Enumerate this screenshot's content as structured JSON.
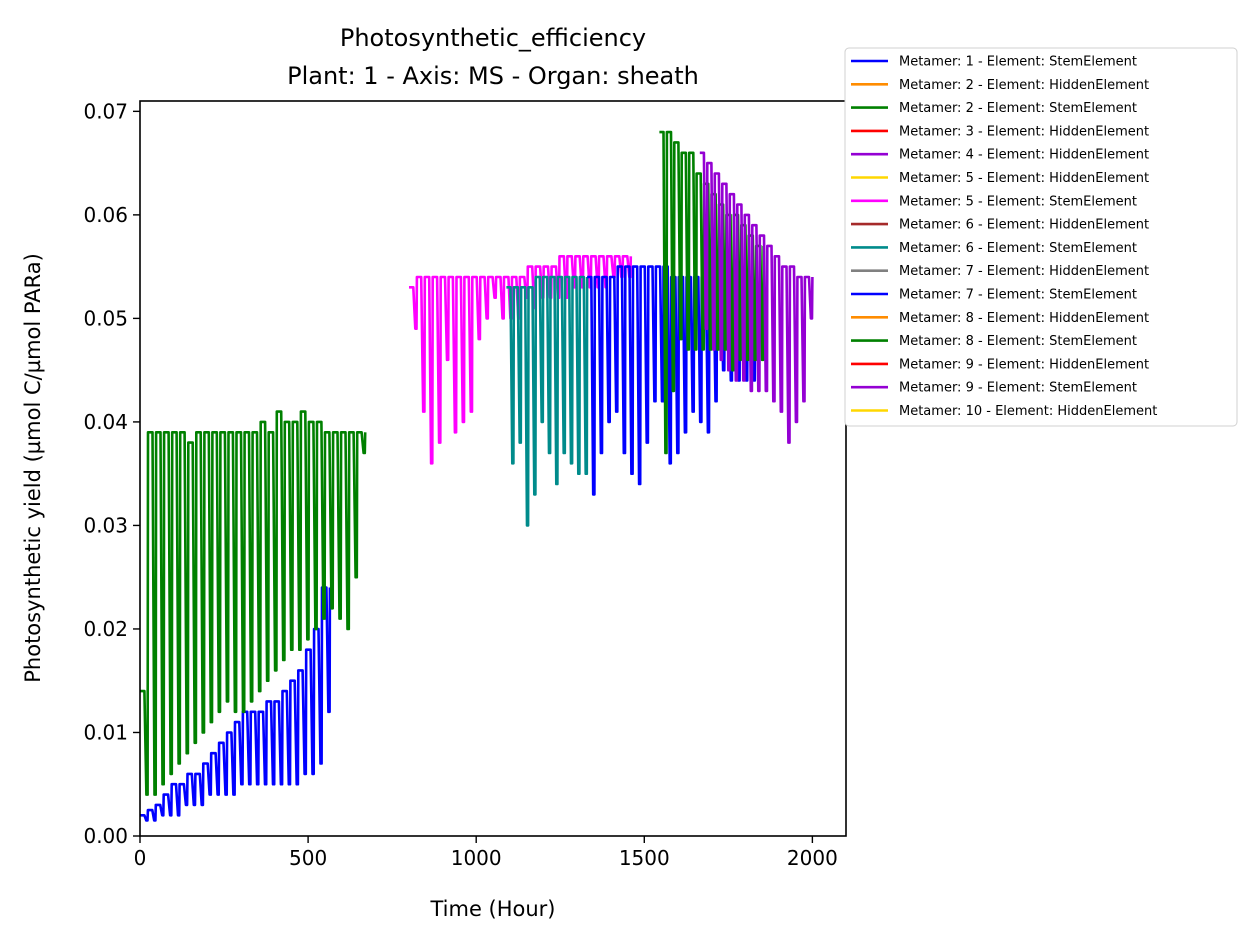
{
  "chart_data": {
    "type": "line",
    "title": "Photosynthetic_efficiency",
    "subtitle": "Plant: 1 - Axis: MS - Organ: sheath",
    "xlabel": "Time (Hour)",
    "ylabel": "Photosynthetic yield (µmol C/µmol PARa)",
    "xlim": [
      0,
      2100
    ],
    "ylim": [
      0,
      0.071
    ],
    "xticks": [
      0,
      500,
      1000,
      1500,
      2000
    ],
    "xtick_labels": [
      "0",
      "500",
      "1000",
      "1500",
      "2000"
    ],
    "yticks": [
      0,
      0.01,
      0.02,
      0.03,
      0.04,
      0.05,
      0.06,
      0.07
    ],
    "ytick_labels": [
      "0.00",
      "0.01",
      "0.02",
      "0.03",
      "0.04",
      "0.05",
      "0.06",
      "0.07"
    ],
    "grid": false,
    "legend_position": "outside-top-right",
    "series": [
      {
        "name": "Metamer: 1 - Element: StemElement",
        "color": "#0000ff",
        "start": 0,
        "end": 565,
        "day_values": [
          0.002,
          0.0025,
          0.003,
          0.004,
          0.005,
          0.005,
          0.006,
          0.006,
          0.007,
          0.008,
          0.009,
          0.01,
          0.011,
          0.012,
          0.012,
          0.012,
          0.013,
          0.013,
          0.014,
          0.015,
          0.016,
          0.018,
          0.02,
          0.024
        ],
        "night_values": [
          0.0015,
          0.0015,
          0.002,
          0.002,
          0.002,
          0.003,
          0.003,
          0.003,
          0.004,
          0.004,
          0.004,
          0.004,
          0.005,
          0.005,
          0.005,
          0.005,
          0.005,
          0.005,
          0.005,
          0.005,
          0.006,
          0.006,
          0.007,
          0.012
        ]
      },
      {
        "name": "Metamer: 2 - Element: HiddenElement",
        "color": "#ff8c00",
        "start": null,
        "end": null,
        "day_values": [],
        "night_values": []
      },
      {
        "name": "Metamer: 2 - Element: StemElement",
        "color": "#008000",
        "start": 0,
        "end": 670,
        "day_values": [
          0.014,
          0.039,
          0.039,
          0.039,
          0.039,
          0.039,
          0.038,
          0.039,
          0.039,
          0.039,
          0.039,
          0.039,
          0.039,
          0.039,
          0.039,
          0.04,
          0.039,
          0.041,
          0.04,
          0.04,
          0.041,
          0.04,
          0.04,
          0.039,
          0.039,
          0.039,
          0.039,
          0.039
        ],
        "night_values": [
          0.004,
          0.004,
          0.005,
          0.006,
          0.007,
          0.008,
          0.009,
          0.01,
          0.011,
          0.012,
          0.013,
          0.012,
          0.012,
          0.013,
          0.014,
          0.015,
          0.016,
          0.017,
          0.018,
          0.018,
          0.019,
          0.02,
          0.021,
          0.022,
          0.021,
          0.02,
          0.025,
          0.037
        ]
      },
      {
        "name": "Metamer: 3 - Element: HiddenElement",
        "color": "#ff0000",
        "start": null,
        "end": null,
        "day_values": [],
        "night_values": []
      },
      {
        "name": "Metamer: 4 - Element: HiddenElement",
        "color": "#9400d3",
        "start": null,
        "end": null,
        "day_values": [],
        "night_values": []
      },
      {
        "name": "Metamer: 5 - Element: HiddenElement",
        "color": "#ffd700",
        "start": null,
        "end": null,
        "day_values": [],
        "night_values": []
      },
      {
        "name": "Metamer: 5 - Element: StemElement",
        "color": "#ff00ff",
        "start": 800,
        "end": 1460,
        "day_values": [
          0.053,
          0.054,
          0.054,
          0.054,
          0.054,
          0.054,
          0.054,
          0.054,
          0.054,
          0.054,
          0.054,
          0.054,
          0.054,
          0.054,
          0.054,
          0.055,
          0.055,
          0.055,
          0.055,
          0.056,
          0.056,
          0.056,
          0.056,
          0.056,
          0.056,
          0.056,
          0.056,
          0.056
        ],
        "night_values": [
          0.049,
          0.041,
          0.036,
          0.038,
          0.046,
          0.039,
          0.04,
          0.041,
          0.048,
          0.05,
          0.052,
          0.05,
          0.05,
          0.05,
          0.052,
          0.051,
          0.052,
          0.052,
          0.052,
          0.052,
          0.053,
          0.053,
          0.053,
          0.053,
          0.053,
          0.054,
          0.054,
          0.054
        ]
      },
      {
        "name": "Metamer: 6 - Element: HiddenElement",
        "color": "#a52a2a",
        "start": null,
        "end": null,
        "day_values": [],
        "night_values": []
      },
      {
        "name": "Metamer: 6 - Element: StemElement",
        "color": "#008b8b",
        "start": 1090,
        "end": 1330,
        "day_values": [
          0.053,
          0.053,
          0.053,
          0.053,
          0.054,
          0.054,
          0.054,
          0.054,
          0.054,
          0.054,
          0.054
        ],
        "night_values": [
          0.036,
          0.038,
          0.03,
          0.033,
          0.04,
          0.037,
          0.034,
          0.037,
          0.036,
          0.035,
          0.035
        ]
      },
      {
        "name": "Metamer: 7 - Element: HiddenElement",
        "color": "#808080",
        "start": null,
        "end": null,
        "day_values": [],
        "night_values": []
      },
      {
        "name": "Metamer: 7 - Element: StemElement",
        "color": "#0000ff",
        "start": 1330,
        "end": 1830,
        "day_values": [
          0.054,
          0.054,
          0.054,
          0.054,
          0.055,
          0.055,
          0.055,
          0.055,
          0.055,
          0.055,
          0.055,
          0.054,
          0.054,
          0.054,
          0.054,
          0.054,
          0.054,
          0.054,
          0.053,
          0.053,
          0.053,
          0.053
        ],
        "night_values": [
          0.033,
          0.037,
          0.04,
          0.041,
          0.037,
          0.035,
          0.034,
          0.038,
          0.042,
          0.042,
          0.036,
          0.037,
          0.039,
          0.041,
          0.04,
          0.039,
          0.042,
          0.045,
          0.044,
          0.044,
          0.044,
          0.044
        ]
      },
      {
        "name": "Metamer: 8 - Element: HiddenElement",
        "color": "#ff8c00",
        "start": null,
        "end": null,
        "day_values": [],
        "night_values": []
      },
      {
        "name": "Metamer: 8 - Element: StemElement",
        "color": "#008000",
        "start": 1545,
        "end": 1855,
        "day_values": [
          0.068,
          0.068,
          0.067,
          0.066,
          0.066,
          0.064,
          0.063,
          0.062,
          0.061,
          0.06,
          0.06,
          0.059,
          0.058,
          0.057
        ],
        "night_values": [
          0.037,
          0.043,
          0.048,
          0.047,
          0.047,
          0.047,
          0.047,
          0.047,
          0.047,
          0.045,
          0.046,
          0.046,
          0.046,
          0.046
        ]
      },
      {
        "name": "Metamer: 9 - Element: HiddenElement",
        "color": "#ff0000",
        "start": null,
        "end": null,
        "day_values": [],
        "night_values": []
      },
      {
        "name": "Metamer: 9 - Element: StemElement",
        "color": "#9400d3",
        "start": 1665,
        "end": 2000,
        "day_values": [
          0.066,
          0.065,
          0.064,
          0.063,
          0.062,
          0.061,
          0.06,
          0.059,
          0.058,
          0.057,
          0.056,
          0.055,
          0.055,
          0.054,
          0.054
        ],
        "night_values": [
          0.049,
          0.047,
          0.046,
          0.045,
          0.044,
          0.044,
          0.043,
          0.043,
          0.043,
          0.042,
          0.041,
          0.038,
          0.04,
          0.042,
          0.05
        ]
      },
      {
        "name": "Metamer: 10 - Element: HiddenElement",
        "color": "#ffd700",
        "start": null,
        "end": null,
        "day_values": [],
        "night_values": []
      }
    ]
  }
}
